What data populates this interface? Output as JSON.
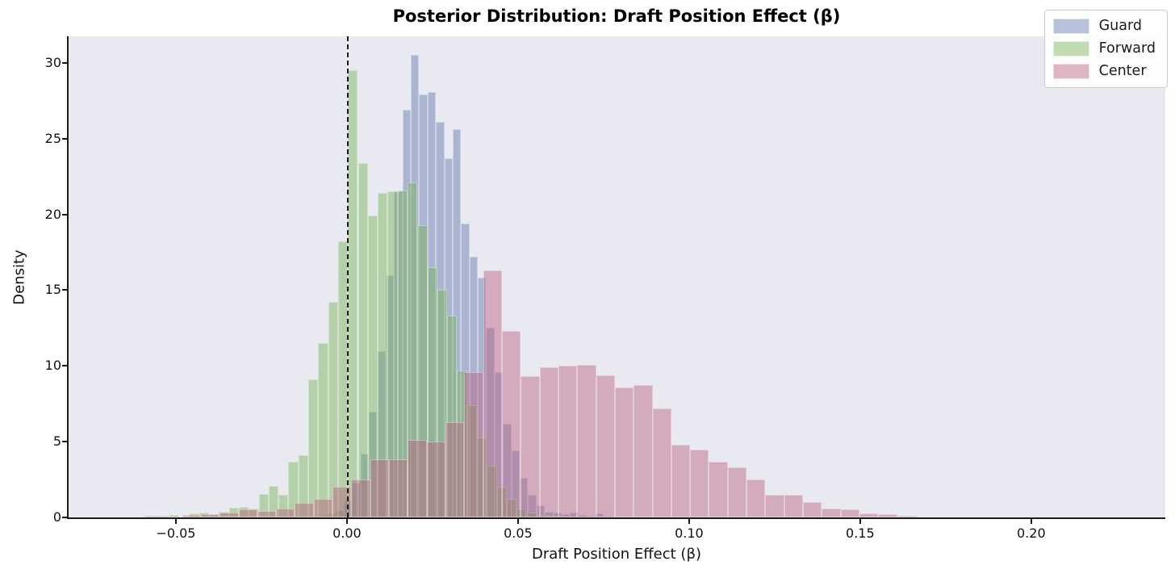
{
  "figure": {
    "background": "#ffffff",
    "plot_background": "#e9e9f1",
    "spine_color": "#1a1a1a",
    "accent_colors": {
      "guard_blue_blended": "#aeb7d6",
      "forward_green_blended": "#b4d0aa",
      "center_pink_blended": "#d3aec0"
    }
  },
  "chart_data": {
    "type": "histogram",
    "title": "Posterior Distribution: Draft Position Effect (β)",
    "xlabel": "Draft Position Effect (β)",
    "ylabel": "Density",
    "xlim": [
      -0.0816,
      0.2392
    ],
    "ylim": [
      0,
      31.75
    ],
    "grid": false,
    "xticks": {
      "values": [
        -0.05,
        0.0,
        0.05,
        0.1,
        0.15,
        0.2
      ],
      "labels": [
        "−0.05",
        "0.00",
        "0.05",
        "0.10",
        "0.15",
        "0.20"
      ]
    },
    "yticks": {
      "values": [
        0,
        5,
        10,
        15,
        20,
        25,
        30
      ],
      "labels": [
        "0",
        "5",
        "10",
        "15",
        "20",
        "25",
        "30"
      ]
    },
    "reference_line": {
      "x": 0.0,
      "style": "dashed",
      "color": "#1a1a1a"
    },
    "legend": {
      "position": "upper right",
      "entries": [
        "Guard",
        "Forward",
        "Center"
      ]
    },
    "series": [
      {
        "name": "Guard",
        "fill": "rgba(95,118,174,0.45)",
        "edge": "rgba(255,255,255,0.4)",
        "bin_start": -0.0083,
        "bin_width": 0.00245,
        "densities": [
          0.1,
          0.25,
          0.5,
          1.1,
          2.3,
          4.2,
          7.0,
          11.0,
          16.0,
          21.5,
          26.9,
          30.5,
          27.9,
          28.1,
          26.1,
          23.7,
          25.6,
          19.4,
          17.2,
          15.8,
          12.5,
          9.6,
          6.2,
          4.4,
          2.6,
          1.5,
          0.8,
          0.4,
          0.3,
          0.2,
          0.3,
          0.15,
          0.05,
          0.25,
          0.1
        ]
      },
      {
        "name": "Forward",
        "fill": "rgba(115,178,80,0.45)",
        "edge": "rgba(255,255,255,0.4)",
        "bin_start": -0.0548,
        "bin_width": 0.0029,
        "densities": [
          0.1,
          0.15,
          0,
          0.25,
          0.3,
          0.2,
          0.4,
          0.65,
          0.7,
          0.6,
          1.55,
          2.1,
          1.5,
          3.7,
          4.1,
          9.1,
          11.5,
          14.2,
          18.2,
          29.5,
          23.4,
          19.9,
          21.4,
          21.5,
          21.6,
          22.1,
          19.3,
          16.5,
          15.0,
          13.3,
          9.7,
          7.4,
          5.3,
          3.4,
          2.0,
          1.2,
          0.6,
          0.3,
          0.15,
          0.1
        ]
      },
      {
        "name": "Center",
        "fill": "rgba(185,95,125,0.45)",
        "edge": "rgba(255,255,255,0.4)",
        "bin_start": -0.0592,
        "bin_width": 0.0055,
        "densities": [
          0.1,
          0,
          0.15,
          0.2,
          0.3,
          0.55,
          0.45,
          0.6,
          0.95,
          1.2,
          2.0,
          2.5,
          3.85,
          3.85,
          5.1,
          5.0,
          6.3,
          9.6,
          16.3,
          12.3,
          9.3,
          9.9,
          10.0,
          10.05,
          9.4,
          8.6,
          8.75,
          7.2,
          4.8,
          4.5,
          3.7,
          3.3,
          2.5,
          1.5,
          1.5,
          1.0,
          0.6,
          0.55,
          0.27,
          0.2,
          0.1
        ]
      }
    ]
  }
}
